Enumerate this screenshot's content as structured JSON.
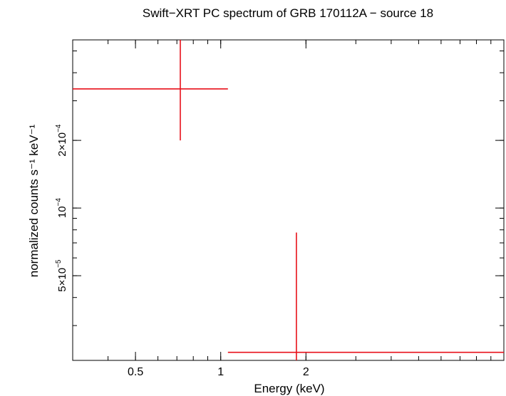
{
  "chart_data": {
    "type": "scatter",
    "title": "Swift−XRT PC spectrum of GRB 170112A − source 18",
    "xlabel": "Energy (keV)",
    "ylabel": "normalized counts s⁻¹ keV⁻¹",
    "x_scale": "log",
    "y_scale": "log",
    "xlim": [
      0.3,
      10
    ],
    "ylim": [
      2.1e-05,
      0.00056
    ],
    "x_ticks": [
      {
        "value": 0.5,
        "label": "0.5"
      },
      {
        "value": 1,
        "label": "1"
      },
      {
        "value": 2,
        "label": "2"
      }
    ],
    "y_ticks": [
      {
        "value": 5e-05,
        "label_mantissa": "5×10",
        "label_exp": "−5"
      },
      {
        "value": 0.0001,
        "label_mantissa": "10",
        "label_exp": "−4"
      },
      {
        "value": 0.0002,
        "label_mantissa": "2×10",
        "label_exp": "−4"
      }
    ],
    "series": [
      {
        "color": "#e8101a",
        "points": [
          {
            "x": 0.72,
            "xlo": 0.3,
            "xhi": 1.06,
            "y": 0.000339,
            "ylo": 0.0002,
            "yhi": 0.00056
          },
          {
            "x": 1.85,
            "xlo": 1.06,
            "xhi": 10,
            "y": 2.28e-05,
            "ylo": 2.1e-05,
            "yhi": 7.78e-05
          }
        ]
      }
    ]
  }
}
